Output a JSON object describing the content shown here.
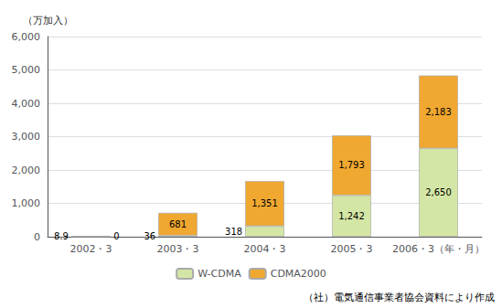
{
  "chart_data": {
    "type": "bar",
    "stacked": true,
    "categories": [
      "2002・3",
      "2003・3",
      "2004・3",
      "2005・3",
      "2006・3（年・月）"
    ],
    "series": [
      {
        "name": "W-CDMA",
        "color": "#d4e6a5",
        "values": [
          8.9,
          36,
          318,
          1242,
          2650
        ],
        "value_labels": [
          "8.9",
          "36",
          "318",
          "1,242",
          "2,650"
        ]
      },
      {
        "name": "CDMA2000",
        "color": "#f0a830",
        "values": [
          0,
          681,
          1351,
          1793,
          2183
        ],
        "value_labels": [
          "0",
          "681",
          "1,351",
          "1,793",
          "2,183"
        ]
      }
    ],
    "totals": [
      8.9,
      716,
      1669,
      3035,
      4833
    ],
    "total_labels": [
      "8.9",
      "716",
      "1,669",
      "3,035",
      "4,833"
    ],
    "ylabel": "（万加入）",
    "ylim": [
      0,
      6000
    ],
    "yticks": [
      0,
      {
        "value": 1000,
        "label": "1,000"
      },
      {
        "value": 2000,
        "label": "2,000"
      },
      {
        "value": 3000,
        "label": "3,000"
      },
      {
        "value": 4000,
        "label": "4,000"
      },
      {
        "value": 5000,
        "label": "5,000"
      },
      {
        "value": 6000,
        "label": "6,000"
      }
    ],
    "grid": true,
    "legend": "bottom",
    "data_labels": true,
    "source": "（社）電気通信事業者協会資料により作成"
  }
}
